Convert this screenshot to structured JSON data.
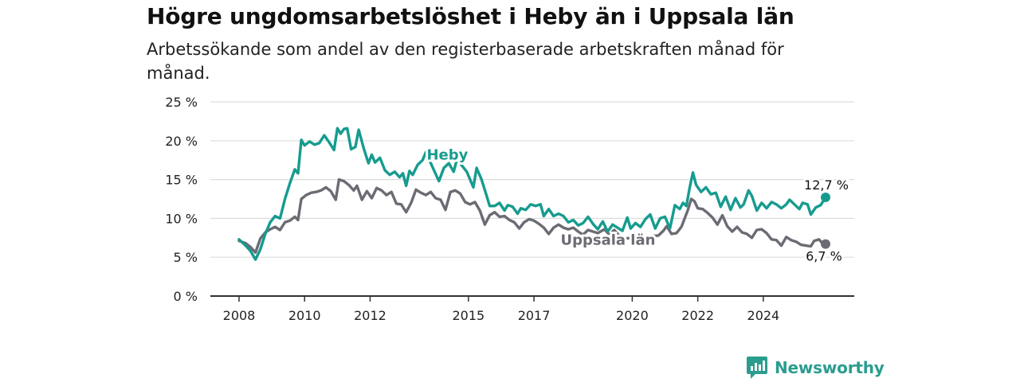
{
  "header": {
    "title": "Högre ungdomsarbetslöshet i Heby än i Uppsala län",
    "subtitle": "Arbetssökande som andel av den registerbaserade arbetskraften månad för månad."
  },
  "brand": {
    "name": "Newsworthy",
    "icon": "bar-chart-speech-icon"
  },
  "colors": {
    "heby": "#169b8f",
    "uppsala": "#6b6b73",
    "grid": "#dddddd",
    "axis": "#333333"
  },
  "chart_data": {
    "type": "line",
    "y_tick_labels": [
      "0 %",
      "5 %",
      "10 %",
      "15 %",
      "20 %",
      "25 %"
    ],
    "y_ticks": [
      0,
      5,
      10,
      15,
      20,
      25
    ],
    "ylim": [
      0,
      25
    ],
    "xlim": [
      2008.0,
      2025.9
    ],
    "x_tick_labels": [
      "2008",
      "2010",
      "2012",
      "2015",
      "2017",
      "2020",
      "2022",
      "2024"
    ],
    "x_ticks": [
      2008,
      2010,
      2012,
      2015,
      2017,
      2020,
      2022,
      2024
    ],
    "grid": true,
    "end_labels": {
      "heby": "12,7 %",
      "uppsala": "6,7 %"
    },
    "series": [
      {
        "name": "Heby",
        "color": "#169b8f",
        "points": [
          [
            2008.0,
            7.3
          ],
          [
            2008.2,
            6.5
          ],
          [
            2008.35,
            5.8
          ],
          [
            2008.5,
            4.7
          ],
          [
            2008.65,
            6.0
          ],
          [
            2008.8,
            8.0
          ],
          [
            2008.95,
            9.5
          ],
          [
            2009.1,
            10.3
          ],
          [
            2009.25,
            10.0
          ],
          [
            2009.4,
            12.5
          ],
          [
            2009.55,
            14.5
          ],
          [
            2009.7,
            16.3
          ],
          [
            2009.8,
            15.8
          ],
          [
            2009.9,
            20.1
          ],
          [
            2010.0,
            19.4
          ],
          [
            2010.15,
            19.9
          ],
          [
            2010.3,
            19.5
          ],
          [
            2010.45,
            19.7
          ],
          [
            2010.6,
            20.7
          ],
          [
            2010.75,
            19.8
          ],
          [
            2010.9,
            18.8
          ],
          [
            2011.0,
            21.6
          ],
          [
            2011.1,
            20.9
          ],
          [
            2011.2,
            21.5
          ],
          [
            2011.3,
            21.6
          ],
          [
            2011.42,
            18.9
          ],
          [
            2011.55,
            19.2
          ],
          [
            2011.65,
            21.4
          ],
          [
            2011.8,
            19.1
          ],
          [
            2011.95,
            17.1
          ],
          [
            2012.05,
            18.2
          ],
          [
            2012.15,
            17.2
          ],
          [
            2012.3,
            17.8
          ],
          [
            2012.45,
            16.2
          ],
          [
            2012.6,
            15.6
          ],
          [
            2012.75,
            16.0
          ],
          [
            2012.9,
            15.3
          ],
          [
            2013.0,
            15.8
          ],
          [
            2013.1,
            14.2
          ],
          [
            2013.2,
            16.1
          ],
          [
            2013.3,
            15.6
          ],
          [
            2013.45,
            16.9
          ],
          [
            2013.6,
            17.5
          ],
          [
            2013.7,
            18.5
          ],
          [
            2014.1,
            14.8
          ],
          [
            2014.25,
            16.5
          ],
          [
            2014.4,
            17.1
          ],
          [
            2014.55,
            16.0
          ],
          [
            2014.65,
            17.6
          ],
          [
            2014.95,
            16.0
          ],
          [
            2015.15,
            14.0
          ],
          [
            2015.25,
            16.5
          ],
          [
            2015.4,
            15.0
          ],
          [
            2015.55,
            13.0
          ],
          [
            2015.65,
            11.6
          ],
          [
            2015.8,
            11.6
          ],
          [
            2015.95,
            12.0
          ],
          [
            2016.1,
            11.0
          ],
          [
            2016.2,
            11.7
          ],
          [
            2016.35,
            11.5
          ],
          [
            2016.5,
            10.6
          ],
          [
            2016.6,
            11.3
          ],
          [
            2016.75,
            11.1
          ],
          [
            2016.9,
            11.8
          ],
          [
            2017.05,
            11.6
          ],
          [
            2017.2,
            11.8
          ],
          [
            2017.3,
            10.3
          ],
          [
            2017.45,
            11.2
          ],
          [
            2017.6,
            10.3
          ],
          [
            2017.75,
            10.6
          ],
          [
            2017.9,
            10.3
          ],
          [
            2018.05,
            9.5
          ],
          [
            2018.2,
            9.8
          ],
          [
            2018.35,
            9.1
          ],
          [
            2018.5,
            9.4
          ],
          [
            2018.65,
            10.2
          ],
          [
            2018.8,
            9.3
          ],
          [
            2018.95,
            8.6
          ],
          [
            2019.1,
            9.6
          ],
          [
            2019.25,
            8.3
          ],
          [
            2019.4,
            9.2
          ],
          [
            2019.55,
            8.8
          ],
          [
            2019.7,
            8.4
          ],
          [
            2019.85,
            10.1
          ],
          [
            2019.95,
            8.7
          ],
          [
            2020.1,
            9.4
          ],
          [
            2020.25,
            8.9
          ],
          [
            2020.4,
            9.9
          ],
          [
            2020.55,
            10.5
          ],
          [
            2020.7,
            8.7
          ],
          [
            2020.85,
            10.0
          ],
          [
            2021.0,
            10.2
          ],
          [
            2021.15,
            8.7
          ],
          [
            2021.3,
            11.7
          ],
          [
            2021.45,
            11.2
          ],
          [
            2021.55,
            12.0
          ],
          [
            2021.65,
            11.6
          ],
          [
            2021.75,
            13.9
          ],
          [
            2021.85,
            15.9
          ],
          [
            2021.95,
            14.3
          ],
          [
            2022.1,
            13.4
          ],
          [
            2022.25,
            14.0
          ],
          [
            2022.4,
            13.1
          ],
          [
            2022.55,
            13.3
          ],
          [
            2022.7,
            11.5
          ],
          [
            2022.85,
            12.8
          ],
          [
            2023.0,
            11.1
          ],
          [
            2023.15,
            12.6
          ],
          [
            2023.3,
            11.4
          ],
          [
            2023.4,
            11.8
          ],
          [
            2023.55,
            13.6
          ],
          [
            2023.65,
            12.9
          ],
          [
            2023.8,
            11.0
          ],
          [
            2023.95,
            12.0
          ],
          [
            2024.1,
            11.3
          ],
          [
            2024.25,
            12.1
          ],
          [
            2024.4,
            11.8
          ],
          [
            2024.55,
            11.3
          ],
          [
            2024.7,
            11.8
          ],
          [
            2024.8,
            12.4
          ],
          [
            2024.95,
            11.8
          ],
          [
            2025.1,
            11.2
          ],
          [
            2025.2,
            12.0
          ],
          [
            2025.35,
            11.8
          ],
          [
            2025.45,
            10.5
          ],
          [
            2025.6,
            11.4
          ],
          [
            2025.75,
            11.7
          ],
          [
            2025.9,
            12.7
          ]
        ]
      },
      {
        "name": "Uppsala län",
        "color": "#6b6b73",
        "points": [
          [
            2008.0,
            7.1
          ],
          [
            2008.2,
            6.8
          ],
          [
            2008.35,
            6.3
          ],
          [
            2008.5,
            5.6
          ],
          [
            2008.65,
            7.4
          ],
          [
            2008.8,
            8.2
          ],
          [
            2008.95,
            8.6
          ],
          [
            2009.1,
            8.9
          ],
          [
            2009.25,
            8.5
          ],
          [
            2009.4,
            9.5
          ],
          [
            2009.55,
            9.7
          ],
          [
            2009.7,
            10.2
          ],
          [
            2009.8,
            9.8
          ],
          [
            2009.9,
            12.5
          ],
          [
            2010.05,
            13.0
          ],
          [
            2010.2,
            13.3
          ],
          [
            2010.35,
            13.4
          ],
          [
            2010.5,
            13.6
          ],
          [
            2010.65,
            14.0
          ],
          [
            2010.8,
            13.5
          ],
          [
            2010.95,
            12.4
          ],
          [
            2011.05,
            15.0
          ],
          [
            2011.2,
            14.8
          ],
          [
            2011.35,
            14.3
          ],
          [
            2011.5,
            13.6
          ],
          [
            2011.6,
            14.2
          ],
          [
            2011.75,
            12.4
          ],
          [
            2011.9,
            13.5
          ],
          [
            2012.05,
            12.6
          ],
          [
            2012.2,
            13.9
          ],
          [
            2012.35,
            13.6
          ],
          [
            2012.5,
            13.0
          ],
          [
            2012.65,
            13.4
          ],
          [
            2012.8,
            11.9
          ],
          [
            2012.95,
            11.8
          ],
          [
            2013.1,
            10.8
          ],
          [
            2013.25,
            12.0
          ],
          [
            2013.4,
            13.7
          ],
          [
            2013.55,
            13.3
          ],
          [
            2013.7,
            13.0
          ],
          [
            2013.85,
            13.4
          ],
          [
            2014.0,
            12.6
          ],
          [
            2014.15,
            12.4
          ],
          [
            2014.3,
            11.1
          ],
          [
            2014.45,
            13.4
          ],
          [
            2014.6,
            13.6
          ],
          [
            2014.75,
            13.2
          ],
          [
            2014.9,
            12.1
          ],
          [
            2015.05,
            11.8
          ],
          [
            2015.2,
            12.1
          ],
          [
            2015.35,
            11.0
          ],
          [
            2015.5,
            9.2
          ],
          [
            2015.65,
            10.4
          ],
          [
            2015.8,
            10.8
          ],
          [
            2015.95,
            10.2
          ],
          [
            2016.1,
            10.3
          ],
          [
            2016.25,
            9.8
          ],
          [
            2016.4,
            9.5
          ],
          [
            2016.55,
            8.7
          ],
          [
            2016.7,
            9.5
          ],
          [
            2016.85,
            9.9
          ],
          [
            2017.0,
            9.7
          ],
          [
            2017.15,
            9.3
          ],
          [
            2017.3,
            8.8
          ],
          [
            2017.45,
            8.0
          ],
          [
            2017.6,
            8.8
          ],
          [
            2017.75,
            9.2
          ],
          [
            2017.9,
            8.8
          ],
          [
            2018.05,
            8.6
          ],
          [
            2018.2,
            8.8
          ],
          [
            2018.35,
            8.3
          ],
          [
            2018.5,
            7.9
          ],
          [
            2018.65,
            8.5
          ],
          [
            2018.8,
            8.3
          ],
          [
            2018.95,
            8.1
          ],
          [
            2019.15,
            8.6
          ],
          [
            2019.3,
            7.9
          ],
          [
            2019.45,
            8.5
          ],
          [
            2019.6,
            7.8
          ],
          [
            2019.75,
            7.4
          ],
          [
            2020.8,
            7.8
          ],
          [
            2020.95,
            8.4
          ],
          [
            2021.05,
            9.0
          ],
          [
            2021.2,
            8.0
          ],
          [
            2021.35,
            8.1
          ],
          [
            2021.5,
            8.9
          ],
          [
            2021.7,
            11.1
          ],
          [
            2021.8,
            12.5
          ],
          [
            2021.9,
            12.2
          ],
          [
            2022.0,
            11.3
          ],
          [
            2022.15,
            11.2
          ],
          [
            2022.3,
            10.7
          ],
          [
            2022.45,
            10.1
          ],
          [
            2022.6,
            9.2
          ],
          [
            2022.75,
            10.4
          ],
          [
            2022.9,
            9.0
          ],
          [
            2023.05,
            8.3
          ],
          [
            2023.2,
            8.9
          ],
          [
            2023.35,
            8.2
          ],
          [
            2023.5,
            8.0
          ],
          [
            2023.65,
            7.5
          ],
          [
            2023.8,
            8.5
          ],
          [
            2023.95,
            8.6
          ],
          [
            2024.1,
            8.1
          ],
          [
            2024.25,
            7.3
          ],
          [
            2024.4,
            7.2
          ],
          [
            2024.55,
            6.5
          ],
          [
            2024.7,
            7.6
          ],
          [
            2024.85,
            7.2
          ],
          [
            2025.0,
            7.0
          ],
          [
            2025.15,
            6.6
          ],
          [
            2025.3,
            6.5
          ],
          [
            2025.45,
            6.4
          ],
          [
            2025.55,
            7.1
          ],
          [
            2025.7,
            7.3
          ],
          [
            2025.8,
            6.8
          ],
          [
            2025.9,
            6.7
          ]
        ]
      }
    ],
    "annotations": [
      {
        "series": "Heby",
        "text": "Heby",
        "x": 2013.75
      },
      {
        "series": "Uppsala län",
        "text": "Uppsala län",
        "x": 2019.6
      }
    ]
  }
}
